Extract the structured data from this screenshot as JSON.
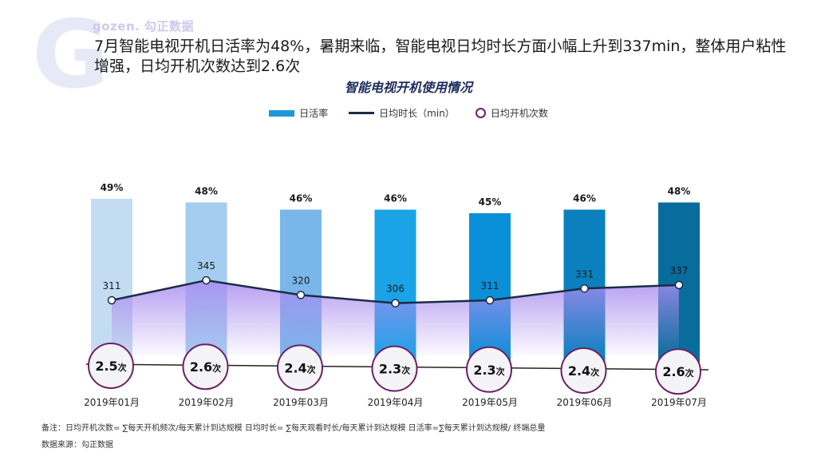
{
  "brand": {
    "logo_letter": "G",
    "logo_text": "gozen. 勾正数据"
  },
  "headline": "7月智能电视开机日活率为48%，暑期来临，智能电视日均时长方面小幅上升到337min，整体用户粘性增强，日均开机次数达到2.6次",
  "chart_data": {
    "type": "bar",
    "title": "智能电视开机使用情况",
    "categories": [
      "2019年01月",
      "2019年02月",
      "2019年03月",
      "2019年04月",
      "2019年05月",
      "2019年06月",
      "2019年07月"
    ],
    "series": [
      {
        "name": "日活率",
        "type": "bar",
        "values": [
          49,
          48,
          46,
          46,
          45,
          46,
          48
        ],
        "labels": [
          "49%",
          "48%",
          "46%",
          "46%",
          "45%",
          "46%",
          "48%"
        ]
      },
      {
        "name": "日均时长（min）",
        "type": "line",
        "values": [
          311,
          345,
          320,
          306,
          311,
          331,
          337
        ],
        "labels": [
          "311",
          "345",
          "320",
          "306",
          "311",
          "331",
          "337"
        ]
      },
      {
        "name": "日均开机次数",
        "type": "bubble",
        "values": [
          2.5,
          2.6,
          2.4,
          2.3,
          2.3,
          2.4,
          2.6
        ],
        "labels": [
          "2.5",
          "2.6",
          "2.4",
          "2.3",
          "2.3",
          "2.4",
          "2.6"
        ],
        "unit": "次"
      }
    ],
    "bar_colors": [
      "#c4dcf2",
      "#a6cdf0",
      "#79b7ea",
      "#1aa3e6",
      "#0a90d8",
      "#0b80bf",
      "#086d9c"
    ],
    "line_color": "#1b2c45",
    "area_color": "#a98cf0",
    "bubble_border": "#6c2167",
    "legend_position": "top-center",
    "xlabel": "",
    "ylabel": "",
    "grid": false
  },
  "footnote": "备注：日均开机次数= ∑每天开机频次/每天累计到达规模    日均时长= ∑每天观看时长/每天累计到达规模    日活率=∑每天累计到达规模/ 终端总量",
  "source": "数据来源：勾正数据"
}
